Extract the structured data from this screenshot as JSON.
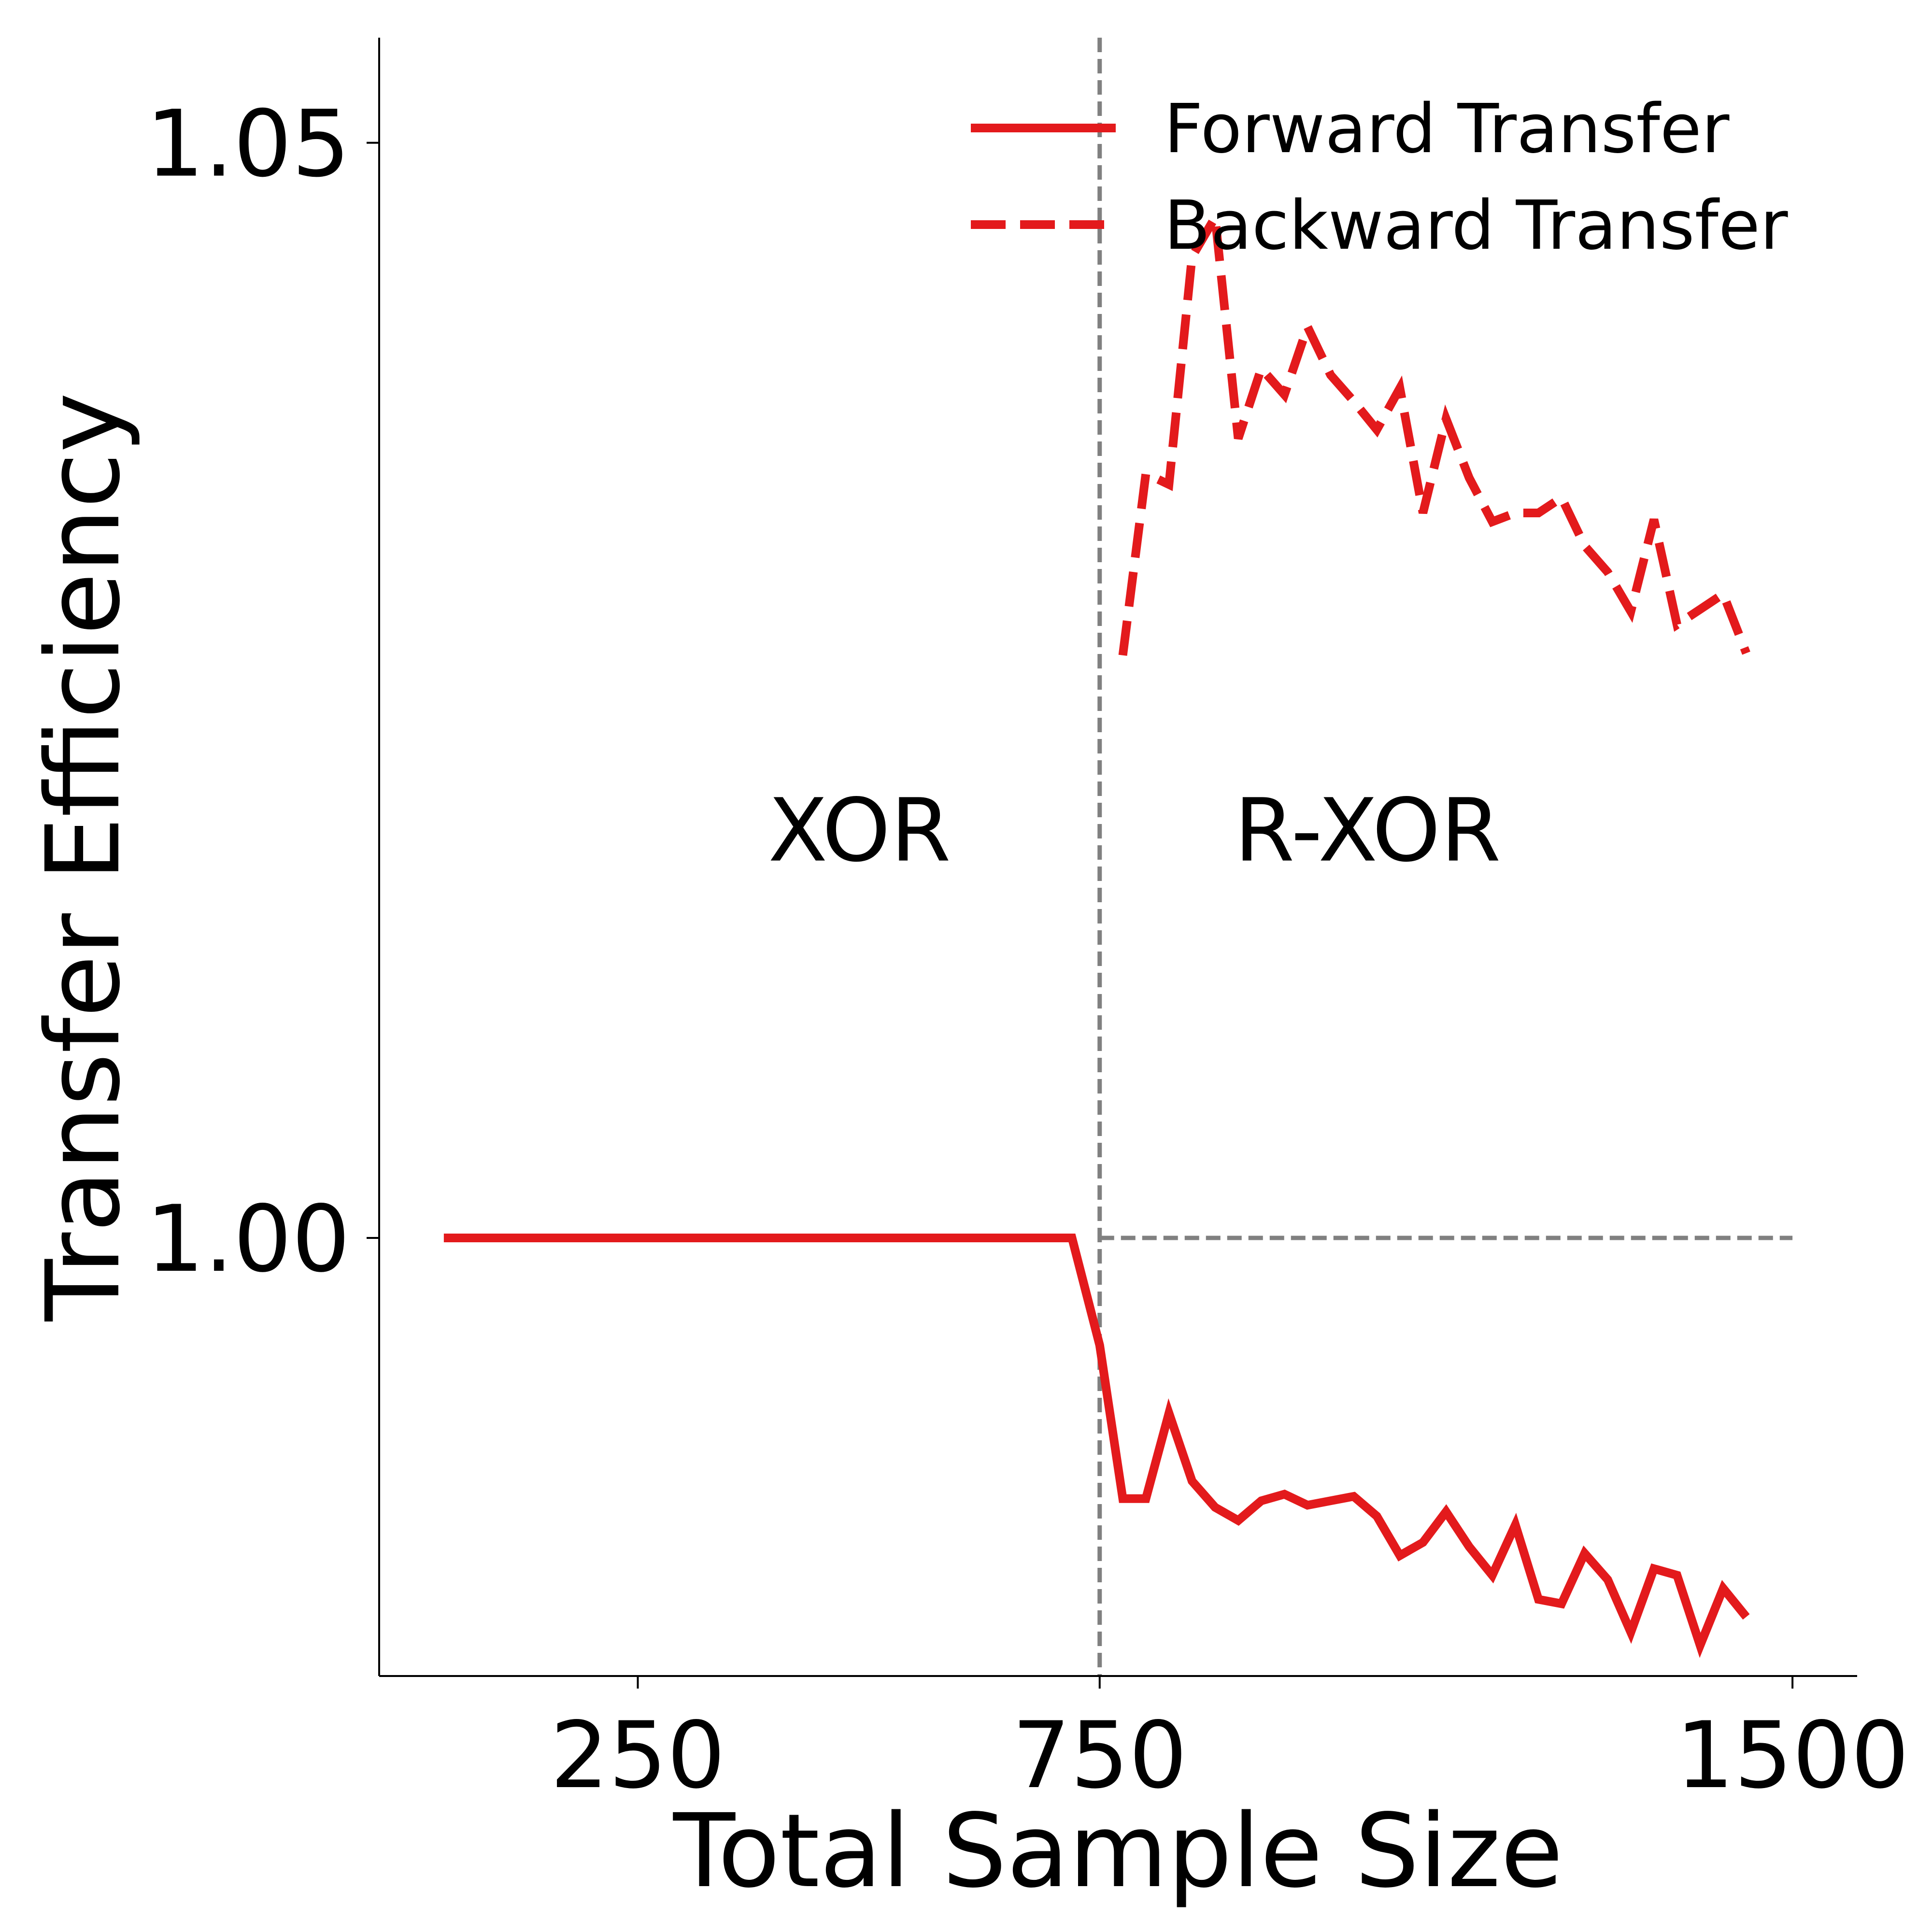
{
  "chart_data": {
    "type": "line",
    "xlabel": "Total Sample Size",
    "ylabel": "Transfer Efficiency",
    "xlim": [
      -30,
      1570
    ],
    "ylim": [
      0.98,
      1.0548
    ],
    "x_ticks": [
      250,
      750,
      1500
    ],
    "x_tick_labels": [
      "250",
      "750",
      "1500"
    ],
    "y_ticks": [
      1.0,
      1.05
    ],
    "y_tick_labels": [
      "1.00",
      "1.05"
    ],
    "grid": false,
    "legend_position": "top-right",
    "colors": {
      "series": "#e31a1c",
      "reference": "#808080"
    },
    "reference_lines": {
      "vertical_x": 750,
      "horizontal_y": 1.0
    },
    "annotations": [
      {
        "text": "XOR",
        "x": 490,
        "y": 1.0186
      },
      {
        "text": "R-XOR",
        "x": 1040,
        "y": 1.0186
      }
    ],
    "series": [
      {
        "name": "Forward Transfer",
        "style": "solid",
        "points": [
          [
            40,
            1.0
          ],
          [
            100,
            1.0
          ],
          [
            200,
            1.0
          ],
          [
            300,
            1.0
          ],
          [
            400,
            1.0
          ],
          [
            500,
            1.0
          ],
          [
            600,
            1.0
          ],
          [
            720,
            1.0
          ],
          [
            750,
            0.9951
          ],
          [
            775,
            0.9881
          ],
          [
            800,
            0.9881
          ],
          [
            825,
            0.992
          ],
          [
            850,
            0.9889
          ],
          [
            875,
            0.9877
          ],
          [
            900,
            0.9871
          ],
          [
            925,
            0.988
          ],
          [
            950,
            0.9883
          ],
          [
            975,
            0.9878
          ],
          [
            1000,
            0.988
          ],
          [
            1025,
            0.9882
          ],
          [
            1050,
            0.9873
          ],
          [
            1075,
            0.9855
          ],
          [
            1100,
            0.9861
          ],
          [
            1125,
            0.9875
          ],
          [
            1150,
            0.9859
          ],
          [
            1175,
            0.9846
          ],
          [
            1200,
            0.9869
          ],
          [
            1225,
            0.9835
          ],
          [
            1250,
            0.9833
          ],
          [
            1275,
            0.9856
          ],
          [
            1300,
            0.9844
          ],
          [
            1325,
            0.982
          ],
          [
            1350,
            0.9849
          ],
          [
            1375,
            0.9846
          ],
          [
            1400,
            0.9814
          ],
          [
            1425,
            0.984
          ],
          [
            1450,
            0.9827
          ]
        ]
      },
      {
        "name": "Backward Transfer",
        "style": "dashed",
        "points": [
          [
            775,
            1.0266
          ],
          [
            800,
            1.0349
          ],
          [
            825,
            1.0344
          ],
          [
            850,
            1.0448
          ],
          [
            875,
            1.0466
          ],
          [
            900,
            1.0365
          ],
          [
            925,
            1.0397
          ],
          [
            950,
            1.0385
          ],
          [
            975,
            1.0416
          ],
          [
            1000,
            1.0394
          ],
          [
            1025,
            1.0382
          ],
          [
            1050,
            1.0369
          ],
          [
            1075,
            1.0388
          ],
          [
            1100,
            1.0331
          ],
          [
            1125,
            1.0374
          ],
          [
            1150,
            1.0347
          ],
          [
            1175,
            1.0327
          ],
          [
            1200,
            1.0331
          ],
          [
            1225,
            1.0331
          ],
          [
            1250,
            1.0338
          ],
          [
            1275,
            1.0316
          ],
          [
            1300,
            1.0304
          ],
          [
            1325,
            1.0286
          ],
          [
            1350,
            1.0328
          ],
          [
            1375,
            1.028
          ],
          [
            1400,
            1.0287
          ],
          [
            1425,
            1.0294
          ],
          [
            1450,
            1.0267
          ]
        ]
      }
    ]
  }
}
